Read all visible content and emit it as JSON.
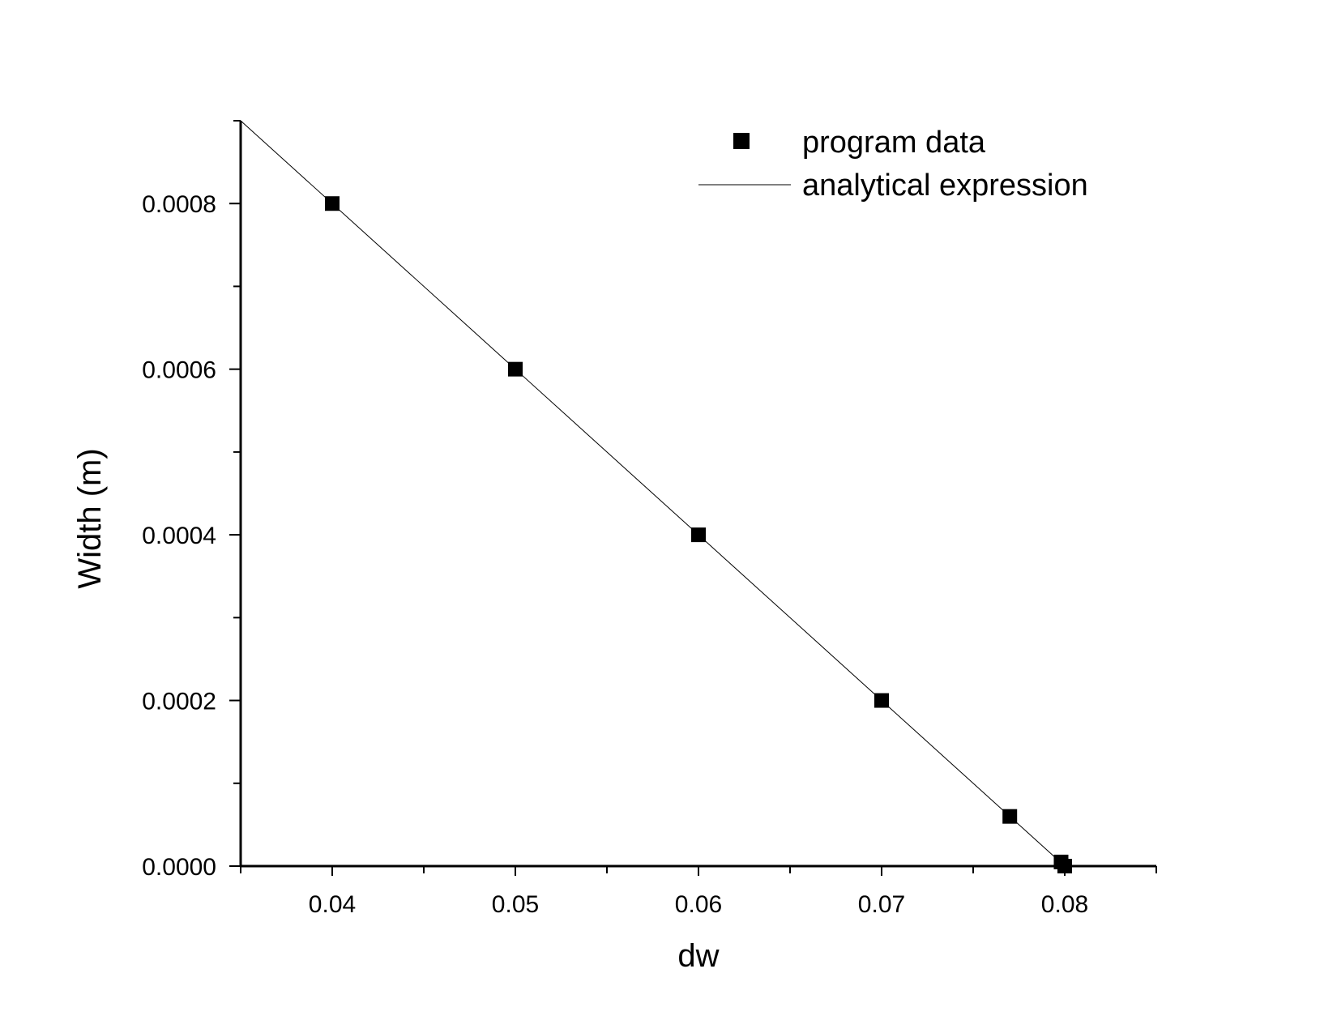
{
  "chart_data": {
    "type": "scatter",
    "title": "",
    "xlabel": "dw",
    "ylabel": "Width (m)",
    "xlim": [
      0.035,
      0.085
    ],
    "ylim": [
      0.0,
      0.0009
    ],
    "x_ticks": [
      0.04,
      0.05,
      0.06,
      0.07,
      0.08
    ],
    "x_tick_labels": [
      "0.04",
      "0.05",
      "0.06",
      "0.07",
      "0.08"
    ],
    "y_ticks": [
      0.0,
      0.0002,
      0.0004,
      0.0006,
      0.0008
    ],
    "y_tick_labels": [
      "0.0000",
      "0.0002",
      "0.0004",
      "0.0006",
      "0.0008"
    ],
    "legend_position": "top-right",
    "grid": false,
    "series": [
      {
        "name": "program data",
        "kind": "scatter",
        "marker": "square",
        "color": "#000000",
        "x": [
          0.04,
          0.05,
          0.06,
          0.07,
          0.077,
          0.0798,
          0.08
        ],
        "y": [
          0.0008,
          0.0006,
          0.0004,
          0.0002,
          6e-05,
          5e-06,
          0.0
        ]
      },
      {
        "name": "analytical expression",
        "kind": "line",
        "color": "#000000",
        "x": [
          0.035,
          0.08
        ],
        "y": [
          0.0009,
          0.0
        ]
      }
    ]
  }
}
